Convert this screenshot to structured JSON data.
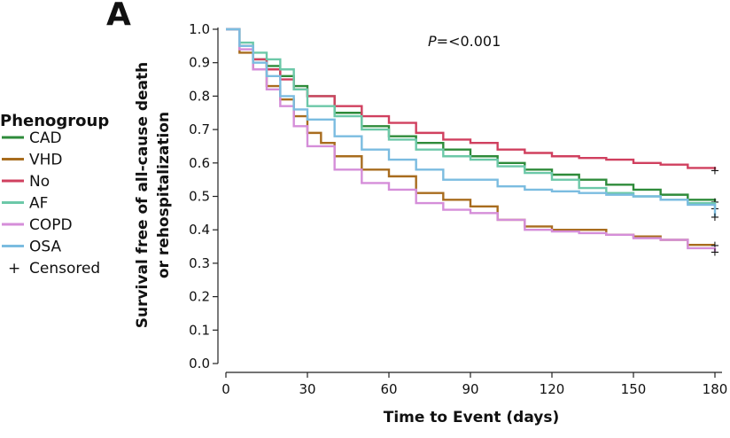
{
  "panel_label": "A",
  "chart_data": {
    "type": "line",
    "step": true,
    "xlabel": "Time to Event (days)",
    "ylabel_lines": [
      "Survival free of all-cause death",
      "or rehospitalization"
    ],
    "xlim": [
      0,
      180
    ],
    "ylim": [
      0,
      1
    ],
    "xticks": [
      0,
      30,
      60,
      90,
      120,
      150,
      180
    ],
    "yticks": [
      0.0,
      0.1,
      0.2,
      0.3,
      0.4,
      0.5,
      0.6,
      0.7,
      0.8,
      0.9,
      1.0
    ],
    "ytick_labels": [
      "0.0",
      "0.1",
      "0.2",
      "0.3",
      "0.4",
      "0.5",
      "0.6",
      "0.7",
      "0.8",
      "0.9",
      "1.0"
    ],
    "grid": false,
    "annotation": {
      "prefix": "P",
      "text": "=<0.001"
    },
    "legend": {
      "title": "Phenogroup",
      "placement": "left",
      "censored_symbol": "+",
      "censored_label": "Censored"
    },
    "series": [
      {
        "name": "CAD",
        "color": "#2e8b3a",
        "x": [
          0,
          5,
          10,
          15,
          20,
          25,
          30,
          40,
          50,
          60,
          70,
          80,
          90,
          100,
          110,
          120,
          130,
          140,
          150,
          160,
          170,
          180
        ],
        "y": [
          1.0,
          0.95,
          0.91,
          0.89,
          0.86,
          0.83,
          0.8,
          0.75,
          0.71,
          0.68,
          0.66,
          0.64,
          0.62,
          0.6,
          0.58,
          0.565,
          0.55,
          0.535,
          0.52,
          0.505,
          0.49,
          0.485
        ]
      },
      {
        "name": "VHD",
        "color": "#a86c1e",
        "x": [
          0,
          5,
          10,
          15,
          20,
          25,
          30,
          35,
          40,
          50,
          60,
          70,
          80,
          90,
          100,
          110,
          120,
          130,
          140,
          150,
          160,
          170,
          180
        ],
        "y": [
          1.0,
          0.93,
          0.88,
          0.83,
          0.79,
          0.74,
          0.69,
          0.66,
          0.62,
          0.58,
          0.56,
          0.51,
          0.49,
          0.47,
          0.43,
          0.41,
          0.4,
          0.4,
          0.385,
          0.38,
          0.37,
          0.355,
          0.355
        ]
      },
      {
        "name": "No",
        "color": "#d0405f",
        "x": [
          0,
          5,
          10,
          15,
          20,
          25,
          30,
          40,
          50,
          60,
          70,
          80,
          90,
          100,
          110,
          120,
          130,
          140,
          150,
          160,
          170,
          180
        ],
        "y": [
          1.0,
          0.95,
          0.91,
          0.88,
          0.85,
          0.82,
          0.8,
          0.77,
          0.74,
          0.72,
          0.69,
          0.67,
          0.66,
          0.64,
          0.63,
          0.62,
          0.615,
          0.61,
          0.6,
          0.595,
          0.585,
          0.58
        ]
      },
      {
        "name": "AF",
        "color": "#6cc8a8",
        "x": [
          0,
          5,
          10,
          15,
          20,
          25,
          30,
          40,
          50,
          60,
          70,
          80,
          90,
          100,
          110,
          120,
          130,
          140,
          150,
          160,
          170,
          180
        ],
        "y": [
          1.0,
          0.96,
          0.93,
          0.91,
          0.88,
          0.82,
          0.77,
          0.74,
          0.7,
          0.67,
          0.64,
          0.62,
          0.61,
          0.59,
          0.57,
          0.55,
          0.525,
          0.51,
          0.5,
          0.49,
          0.48,
          0.465
        ]
      },
      {
        "name": "COPD",
        "color": "#d58ed9",
        "x": [
          0,
          5,
          10,
          15,
          20,
          25,
          30,
          40,
          50,
          60,
          70,
          80,
          90,
          100,
          110,
          120,
          130,
          140,
          150,
          160,
          170,
          180
        ],
        "y": [
          1.0,
          0.94,
          0.88,
          0.82,
          0.77,
          0.71,
          0.65,
          0.58,
          0.54,
          0.52,
          0.48,
          0.46,
          0.45,
          0.43,
          0.4,
          0.395,
          0.39,
          0.385,
          0.375,
          0.37,
          0.345,
          0.335
        ]
      },
      {
        "name": "OSA",
        "color": "#7bbce0",
        "x": [
          0,
          5,
          10,
          15,
          20,
          25,
          30,
          40,
          50,
          60,
          70,
          80,
          90,
          100,
          110,
          120,
          130,
          140,
          150,
          160,
          170,
          180
        ],
        "y": [
          1.0,
          0.95,
          0.9,
          0.86,
          0.8,
          0.76,
          0.73,
          0.68,
          0.64,
          0.61,
          0.58,
          0.55,
          0.55,
          0.53,
          0.52,
          0.515,
          0.51,
          0.505,
          0.5,
          0.49,
          0.475,
          0.44
        ]
      }
    ]
  }
}
